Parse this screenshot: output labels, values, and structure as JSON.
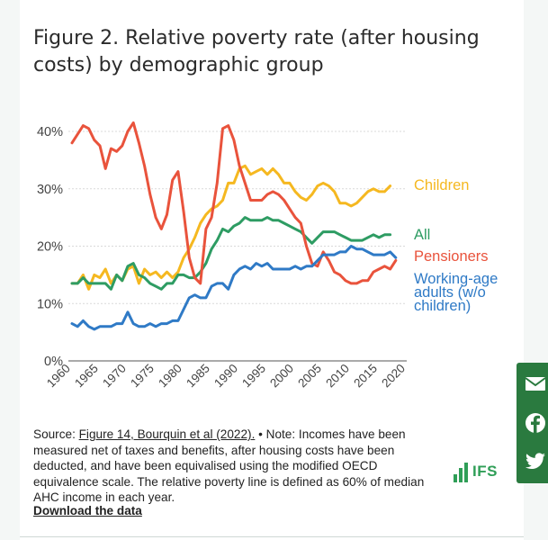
{
  "title": "Figure 2. Relative poverty rate (after housing costs) by demographic group",
  "note": {
    "source_prefix": "Source: ",
    "source_link": "Figure 14, Bourquin et al (2022).",
    "rest": " • Note: Incomes have been measured net of taxes and benefits, after housing costs have been deducted, and have been equivalised using the modified OECD equivalence scale. The relative poverty line is defined as 60% of median AHC income in each year."
  },
  "download_label": "Download the data",
  "logo_text": "IFS",
  "share_icons": [
    "mail-icon",
    "facebook-icon",
    "twitter-icon"
  ],
  "colors": {
    "children": "#f5b820",
    "all": "#2e9c63",
    "pensioners": "#e9533c",
    "working_age": "#2f7ac6",
    "brand_green": "#2a7a3f"
  },
  "chart_data": {
    "type": "line",
    "title": "",
    "xlabel": "",
    "ylabel": "",
    "xlim": [
      1961,
      2020
    ],
    "ylim": [
      0,
      40
    ],
    "y_ticks": [
      "0%",
      "10%",
      "20%",
      "30%",
      "40%"
    ],
    "x_ticks": [
      "1960",
      "1965",
      "1970",
      "1975",
      "1980",
      "1985",
      "1990",
      "1995",
      "2000",
      "2005",
      "2010",
      "2015",
      "2020"
    ],
    "grid": true,
    "x": [
      1961,
      1962,
      1963,
      1964,
      1965,
      1966,
      1967,
      1968,
      1969,
      1970,
      1971,
      1972,
      1973,
      1974,
      1975,
      1976,
      1977,
      1978,
      1979,
      1980,
      1981,
      1982,
      1983,
      1984,
      1985,
      1986,
      1987,
      1988,
      1989,
      1990,
      1991,
      1992,
      1993,
      1994,
      1995,
      1996,
      1997,
      1998,
      1999,
      2000,
      2001,
      2002,
      2003,
      2004,
      2005,
      2006,
      2007,
      2008,
      2009,
      2010,
      2011,
      2012,
      2013,
      2014,
      2015,
      2016,
      2017,
      2018,
      2019
    ],
    "series": [
      {
        "name": "Children",
        "key": "children",
        "values": [
          13.5,
          13.5,
          15,
          12.5,
          15,
          14.5,
          16,
          13.5,
          15,
          14,
          16,
          16.5,
          13.5,
          16,
          15,
          15.5,
          14.5,
          15.5,
          14.5,
          15.5,
          18,
          19.5,
          21.5,
          24,
          25.5,
          26.5,
          27,
          28,
          31,
          31,
          33.5,
          34,
          32.5,
          33,
          33.5,
          32.5,
          33.5,
          32.5,
          31,
          31,
          29.5,
          28.5,
          28,
          29,
          30.5,
          31,
          30.5,
          29.5,
          27.5,
          27.5,
          27,
          27.5,
          28.5,
          29.5,
          30,
          29.5,
          29.5,
          30.5,
          null
        ]
      },
      {
        "name": "All",
        "key": "all",
        "values": [
          13.5,
          13.5,
          14.5,
          13.5,
          13.5,
          13.5,
          13.5,
          12.5,
          15,
          14,
          16.5,
          17,
          15,
          14.5,
          13.5,
          13,
          12.5,
          13.5,
          13.5,
          15,
          15,
          14.5,
          14.5,
          15.5,
          17,
          19.5,
          21,
          23,
          22.5,
          23.5,
          24,
          25,
          24.5,
          24.5,
          24.5,
          25,
          24.5,
          24.5,
          24,
          23.5,
          23,
          22.5,
          21.5,
          20.5,
          21.5,
          22.5,
          22.5,
          22.5,
          22,
          21.5,
          21,
          21,
          21,
          21.5,
          22,
          21.5,
          22,
          22,
          null
        ]
      },
      {
        "name": "Pensioners",
        "key": "pensioners",
        "values": [
          38,
          39.5,
          41,
          40.5,
          38.5,
          37.5,
          33.5,
          37,
          36.5,
          37.5,
          40,
          41.5,
          38,
          34,
          29,
          25,
          23,
          25.5,
          31.5,
          33,
          26,
          18,
          14.5,
          13.5,
          23,
          25,
          31,
          40.5,
          41,
          38.5,
          34,
          31,
          28,
          28,
          28,
          29,
          29.5,
          29,
          28,
          26.5,
          25,
          24,
          20,
          17,
          16.5,
          19,
          17.5,
          15.5,
          15,
          14,
          13.5,
          13.5,
          14,
          14,
          15.5,
          16,
          16.5,
          16,
          17.5
        ]
      },
      {
        "name": "Working-age adults (w/o children)",
        "key": "working_age",
        "values": [
          6.5,
          6,
          7,
          6,
          5.5,
          6,
          6,
          6,
          6.5,
          6.5,
          8.5,
          6.5,
          6,
          6,
          6.5,
          6,
          6.5,
          6.5,
          7,
          7,
          9,
          11,
          11.5,
          11,
          11,
          13,
          13.5,
          13.5,
          12.5,
          15,
          16,
          16.5,
          16,
          17,
          16.5,
          17,
          16,
          16,
          16,
          16,
          16.5,
          16,
          16.5,
          16.5,
          17.5,
          18.5,
          18.5,
          18.5,
          19,
          19,
          20,
          19.5,
          19.5,
          19,
          18.5,
          18.5,
          18.5,
          19,
          18
        ]
      }
    ],
    "legend": [
      {
        "key": "children",
        "lines": [
          "Children"
        ]
      },
      {
        "key": "all",
        "lines": [
          "All"
        ]
      },
      {
        "key": "pensioners",
        "lines": [
          "Pensioners"
        ]
      },
      {
        "key": "working_age",
        "lines": [
          "Working-age",
          "adults (w/o",
          "children)"
        ]
      }
    ],
    "legend_placement": "right"
  }
}
